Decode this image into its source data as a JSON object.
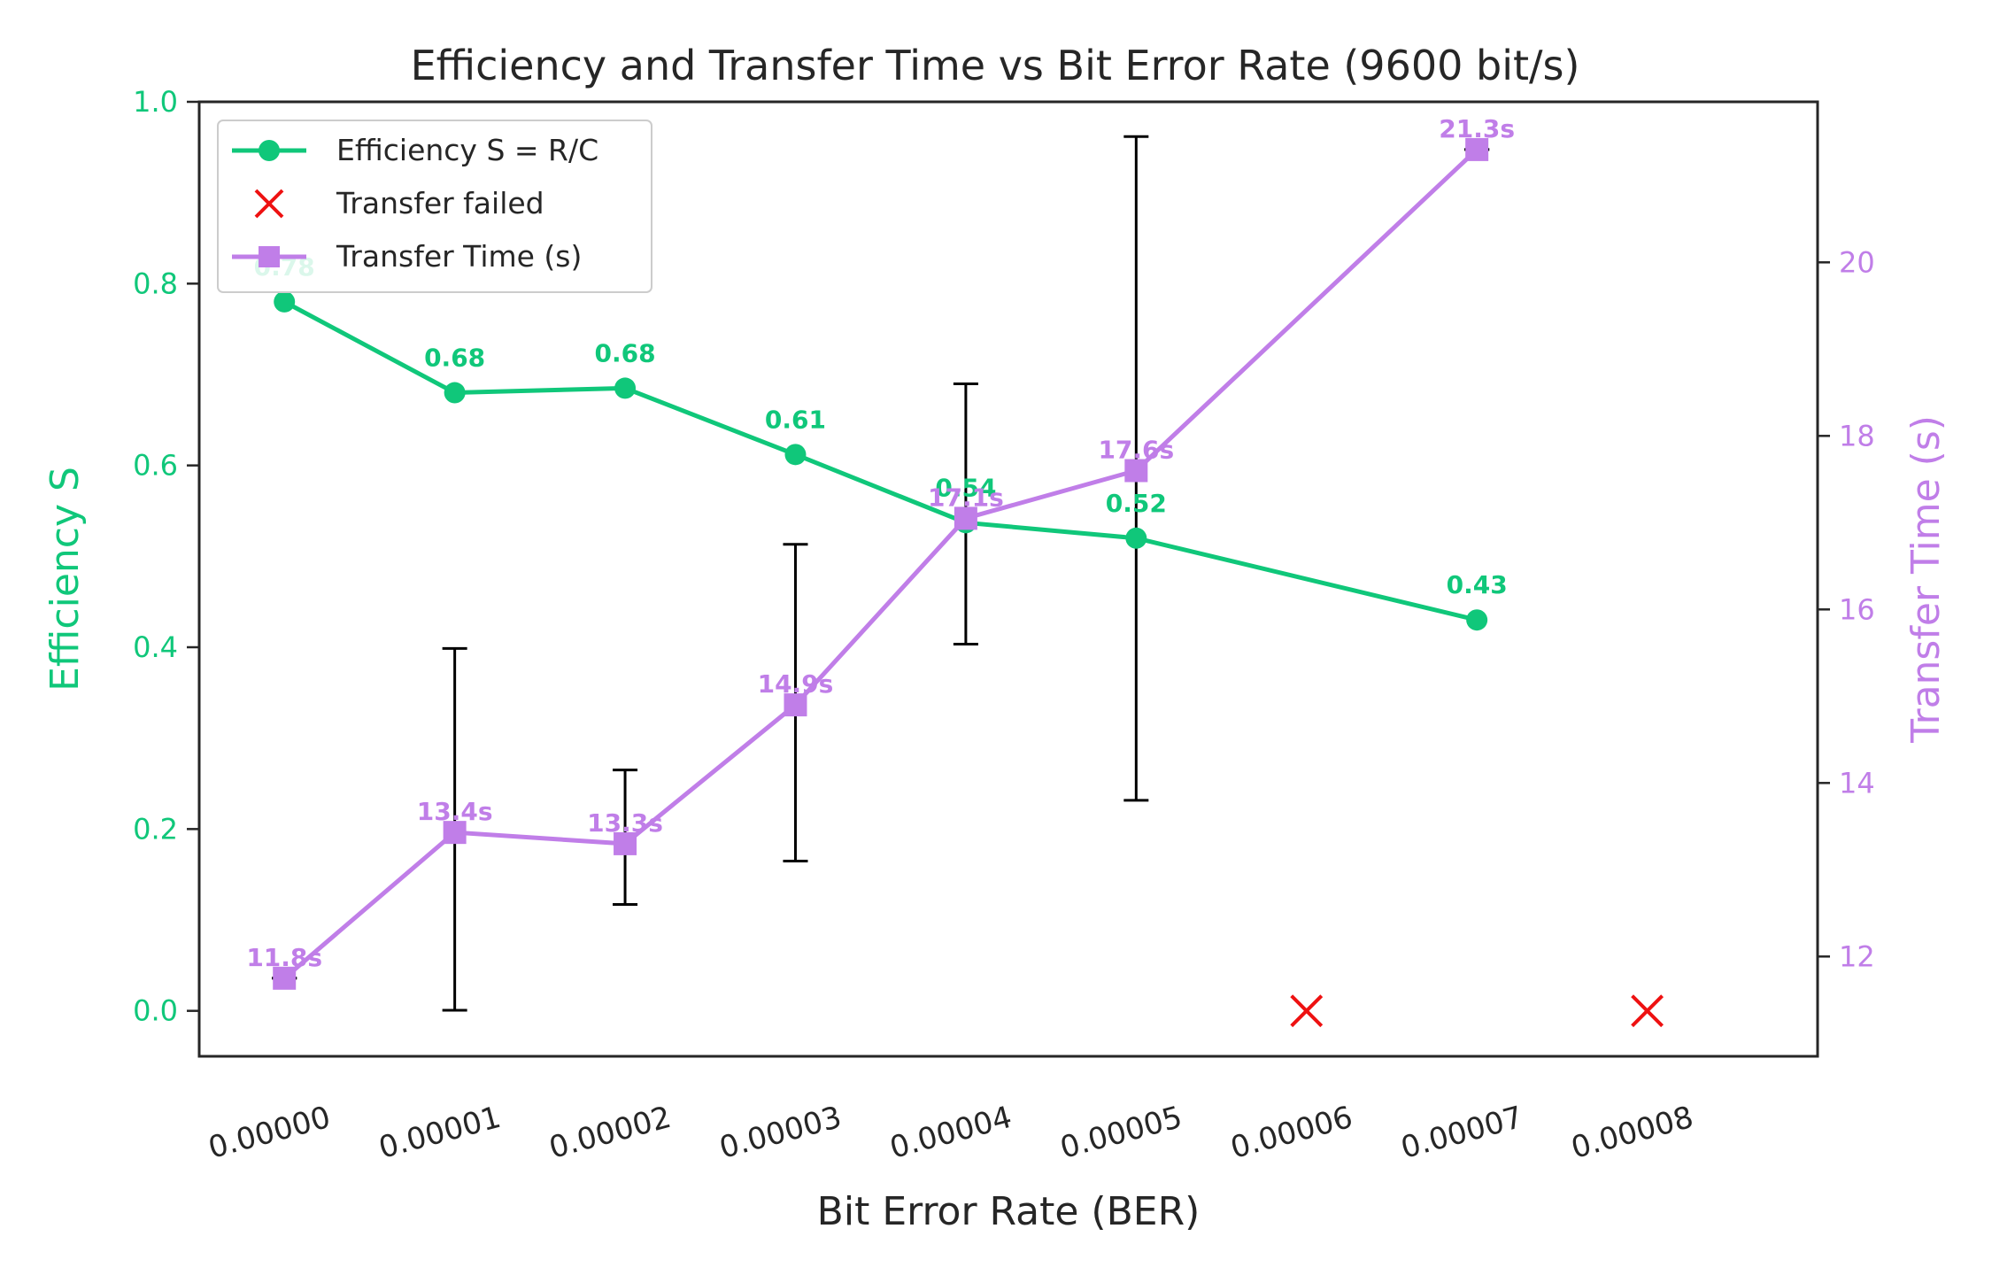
{
  "chart_data": {
    "type": "line",
    "title": "Efficiency and Transfer Time vs Bit Error Rate (9600 bit/s)",
    "xlabel": "Bit Error Rate (BER)",
    "ylabel_left": "Efficiency S",
    "ylabel_right": "Transfer Time (s)",
    "x_tick_labels": [
      "0.00000",
      "0.00001",
      "0.00002",
      "0.00003",
      "0.00004",
      "0.00005",
      "0.00006",
      "0.00007",
      "0.00008"
    ],
    "xlim": [
      -5e-06,
      9e-05
    ],
    "ylim_left": [
      -0.05,
      1.0
    ],
    "ylim_right": [
      10.85,
      21.85
    ],
    "y_ticks_left": [
      "0.0",
      "0.2",
      "0.4",
      "0.6",
      "0.8",
      "1.0"
    ],
    "y_ticks_right": [
      "12",
      "14",
      "16",
      "18",
      "20"
    ],
    "grid": false,
    "legend_position": "top-left",
    "colors": {
      "efficiency": "#10c77a",
      "transfer_time": "#c07ee8",
      "failed": "#ee1111",
      "error_bar": "#000000",
      "frame": "#262626"
    },
    "series": [
      {
        "name": "Efficiency S = R/C",
        "axis": "left",
        "marker": "circle",
        "x": [
          0.0,
          1e-05,
          2e-05,
          3e-05,
          4e-05,
          5e-05,
          7e-05
        ],
        "values": [
          0.78,
          0.68,
          0.685,
          0.612,
          0.537,
          0.52,
          0.43
        ],
        "labels": [
          "0.78",
          "0.68",
          "0.68",
          "0.61",
          "0.54",
          "0.52",
          "0.43"
        ]
      },
      {
        "name": "Transfer failed",
        "axis": "left",
        "marker": "x",
        "x": [
          6e-05,
          8e-05
        ],
        "values": [
          0.0,
          0.0
        ]
      },
      {
        "name": "Transfer Time (s)",
        "axis": "right",
        "marker": "square",
        "x": [
          0.0,
          1e-05,
          2e-05,
          3e-05,
          4e-05,
          5e-05,
          7e-05
        ],
        "values": [
          11.75,
          13.43,
          13.3,
          14.9,
          17.05,
          17.6,
          21.3
        ],
        "labels": [
          "11.8s",
          "13.4s",
          "13.3s",
          "14.9s",
          "17.1s",
          "17.6s",
          "21.3s"
        ],
        "error": [
          [
            11.75,
            11.75
          ],
          [
            11.38,
            15.55
          ],
          [
            12.6,
            14.15
          ],
          [
            13.1,
            16.75
          ],
          [
            15.6,
            18.6
          ],
          [
            13.8,
            21.45
          ],
          [
            21.3,
            21.3
          ]
        ]
      }
    ]
  }
}
